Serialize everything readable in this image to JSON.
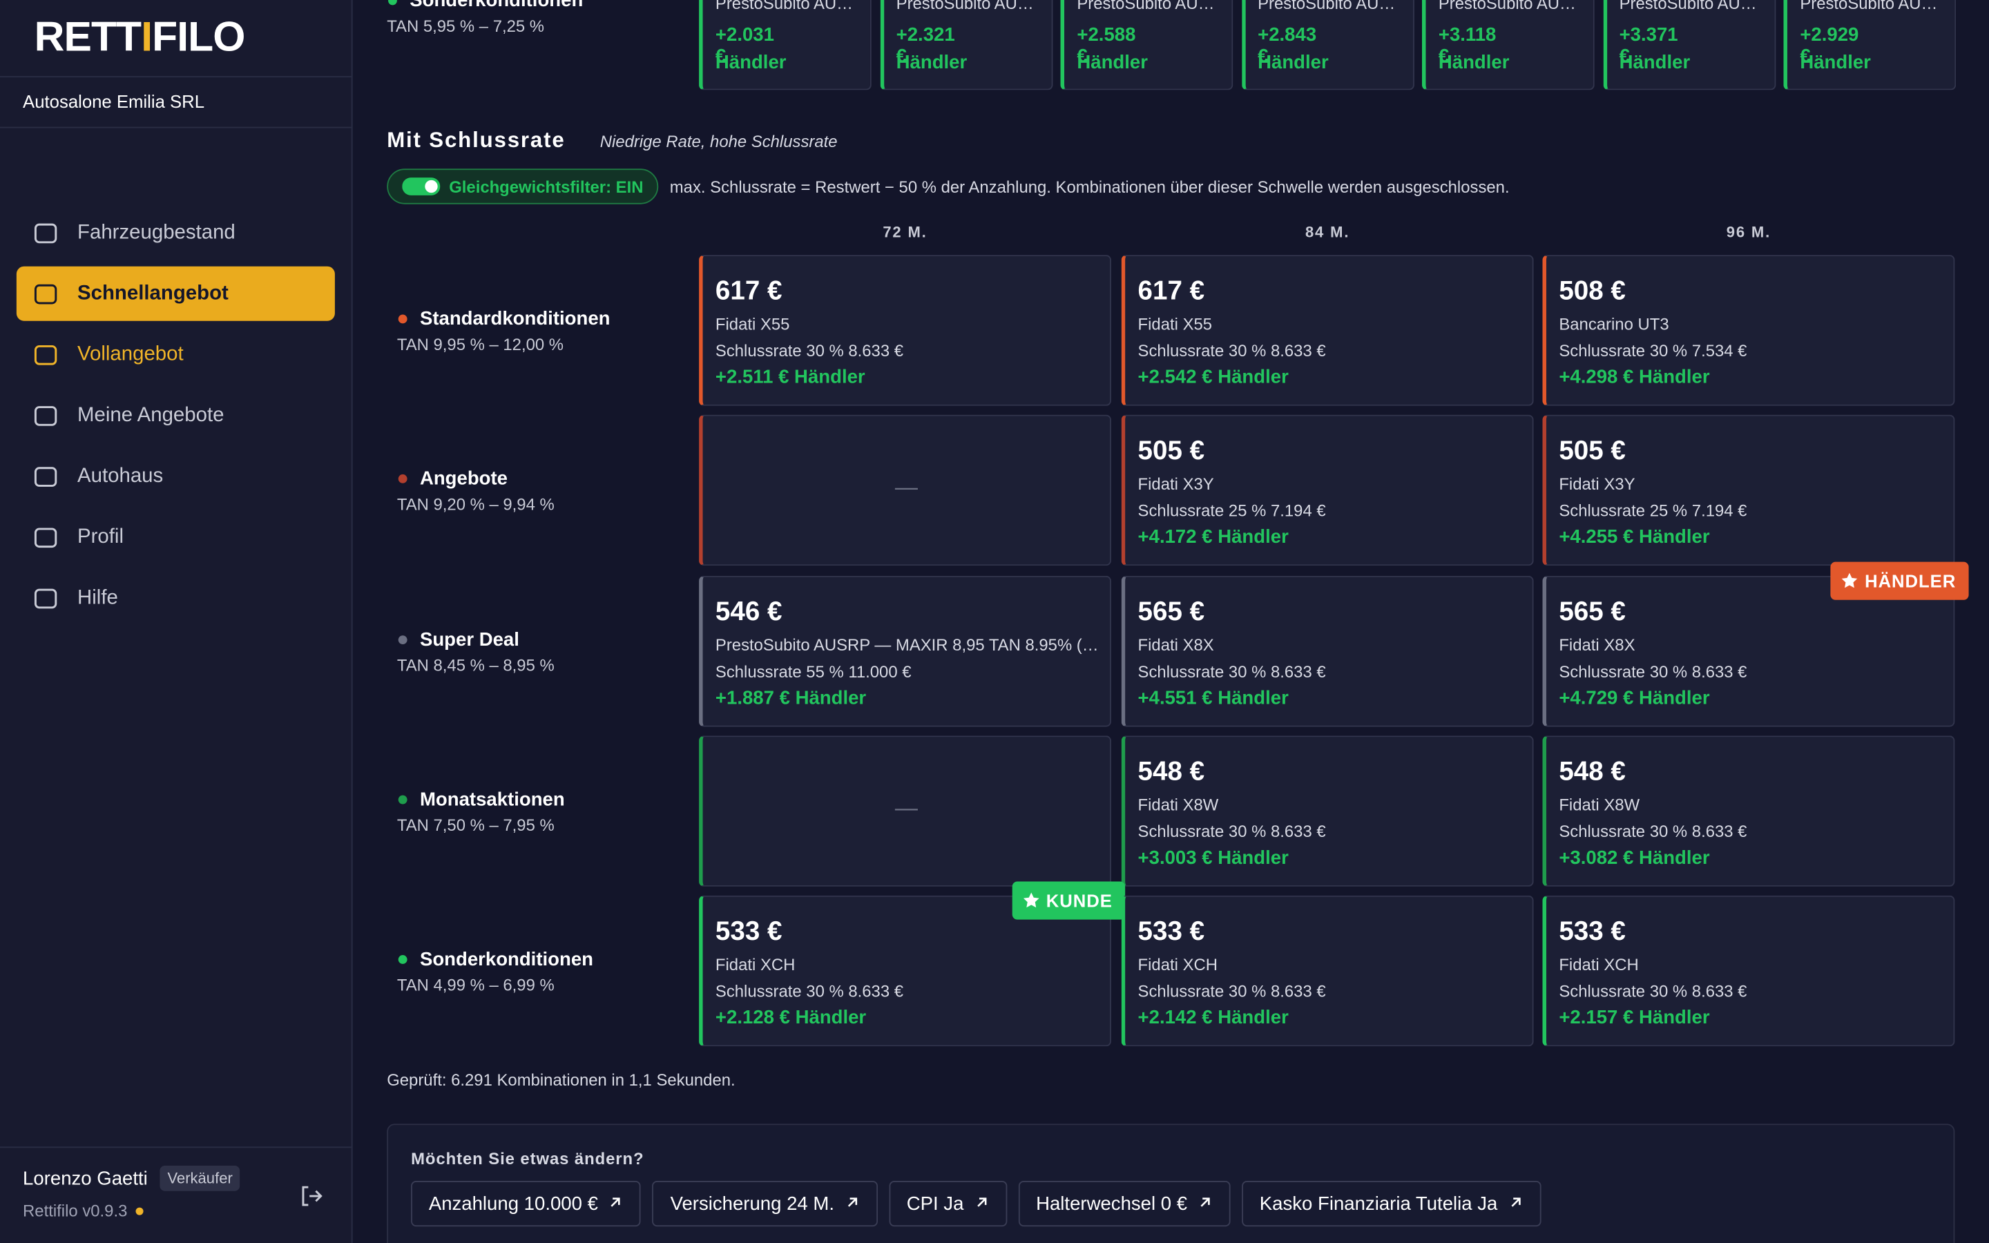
{
  "sidebar": {
    "logo": [
      "RETT",
      "I",
      "FILO"
    ],
    "company": "Autosalone Emilia SRL",
    "nav": [
      {
        "label": "Fahrzeugbestand",
        "state": "normal"
      },
      {
        "label": "Schnellangebot",
        "state": "active"
      },
      {
        "label": "Vollangebot",
        "state": "accent"
      },
      {
        "label": "Meine Angebote",
        "state": "normal"
      },
      {
        "label": "Autohaus",
        "state": "normal"
      },
      {
        "label": "Profil",
        "state": "normal"
      },
      {
        "label": "Hilfe",
        "state": "normal"
      }
    ],
    "user": {
      "name": "Lorenzo Gaetti",
      "role": "Verkäufer",
      "version": "Rettifilo v0.9.3"
    }
  },
  "top_row": {
    "name": "Sonderkonditionen",
    "tan": "TAN 5,95 % – 7,25 %",
    "cards": [
      {
        "lender": "PrestoSubito AU…",
        "gain": "+2.031 €",
        "who": "Händler"
      },
      {
        "lender": "PrestoSubito AU…",
        "gain": "+2.321 €",
        "who": "Händler"
      },
      {
        "lender": "PrestoSubito AU…",
        "gain": "+2.588 €",
        "who": "Händler"
      },
      {
        "lender": "PrestoSubito AU…",
        "gain": "+2.843 €",
        "who": "Händler"
      },
      {
        "lender": "PrestoSubito AU…",
        "gain": "+3.118 €",
        "who": "Händler"
      },
      {
        "lender": "PrestoSubito AU…",
        "gain": "+3.371 €",
        "who": "Händler"
      },
      {
        "lender": "PrestoSubito AU…",
        "gain": "+2.929 €",
        "who": "Händler"
      }
    ]
  },
  "section": {
    "title": "Mit Schlussrate",
    "subtitle": "Niedrige Rate, hohe Schlussrate",
    "toggle": "Gleichgewichtsfilter: EIN",
    "note": "max. Schlussrate = Restwert − 50 % der Anzahlung. Kombinationen über dieser Schwelle werden ausgeschlossen.",
    "columns": [
      "72 M.",
      "84 M.",
      "96 M."
    ],
    "rows": [
      {
        "name": "Standardkonditionen",
        "tan": "TAN 9,95 % – 12,00 %",
        "color": "#e2582b",
        "cells": [
          {
            "price": "617 €",
            "lender": "Fidati X55",
            "rest": "Schlussrate 30 % 8.633 €",
            "gain": "+2.511 € Händler"
          },
          {
            "price": "617 €",
            "lender": "Fidati X55",
            "rest": "Schlussrate 30 % 8.633 €",
            "gain": "+2.542 € Händler"
          },
          {
            "price": "508 €",
            "lender": "Bancarino UT3",
            "rest": "Schlussrate 30 % 7.534 €",
            "gain": "+4.298 € Händler"
          }
        ]
      },
      {
        "name": "Angebote",
        "tan": "TAN 9,20 % – 9,94 %",
        "color": "#b3402e",
        "cells": [
          {
            "empty": "—"
          },
          {
            "price": "505 €",
            "lender": "Fidati X3Y",
            "rest": "Schlussrate 25 % 7.194 €",
            "gain": "+4.172 € Händler"
          },
          {
            "price": "505 €",
            "lender": "Fidati X3Y",
            "rest": "Schlussrate 25 % 7.194 €",
            "gain": "+4.255 € Händler"
          }
        ]
      },
      {
        "name": "Super Deal",
        "tan": "TAN 8,45 % – 8,95 %",
        "color": "#6b6f82",
        "cells": [
          {
            "price": "546 €",
            "lender": "PrestoSubito AUSRP — MAXIR 8,95 TAN 8.95% (…",
            "rest": "Schlussrate 55 % 11.000 €",
            "gain": "+1.887 € Händler"
          },
          {
            "price": "565 €",
            "lender": "Fidati X8X",
            "rest": "Schlussrate 30 % 8.633 €",
            "gain": "+4.551 € Händler"
          },
          {
            "price": "565 €",
            "lender": "Fidati X8X",
            "rest": "Schlussrate 30 % 8.633 €",
            "gain": "+4.729 € Händler",
            "badge": "HÄNDLER"
          }
        ]
      },
      {
        "name": "Monatsaktionen",
        "tan": "TAN 7,50 % – 7,95 %",
        "color": "#1f9d4c",
        "cells": [
          {
            "empty": "—"
          },
          {
            "price": "548 €",
            "lender": "Fidati X8W",
            "rest": "Schlussrate 30 % 8.633 €",
            "gain": "+3.003 € Händler"
          },
          {
            "price": "548 €",
            "lender": "Fidati X8W",
            "rest": "Schlussrate 30 % 8.633 €",
            "gain": "+3.082 € Händler"
          }
        ]
      },
      {
        "name": "Sonderkonditionen",
        "tan": "TAN 4,99 % – 6,99 %",
        "color": "#22c55e",
        "cells": [
          {
            "price": "533 €",
            "lender": "Fidati XCH",
            "rest": "Schlussrate 30 % 8.633 €",
            "gain": "+2.128 € Händler",
            "badge": "KUNDE"
          },
          {
            "price": "533 €",
            "lender": "Fidati XCH",
            "rest": "Schlussrate 30 % 8.633 €",
            "gain": "+2.142 € Händler"
          },
          {
            "price": "533 €",
            "lender": "Fidati XCH",
            "rest": "Schlussrate 30 % 8.633 €",
            "gain": "+2.157 € Händler"
          }
        ]
      }
    ],
    "footer": "Geprüft: 6.291 Kombinationen in 1,1 Sekunden."
  },
  "change_panel": {
    "title": "Möchten Sie etwas ändern?",
    "chips": [
      "Anzahlung 10.000 €",
      "Versicherung 24 M.",
      "CPI Ja",
      "Halterwechsel 0 €",
      "Kasko Finanziaria Tutelia Ja"
    ]
  }
}
